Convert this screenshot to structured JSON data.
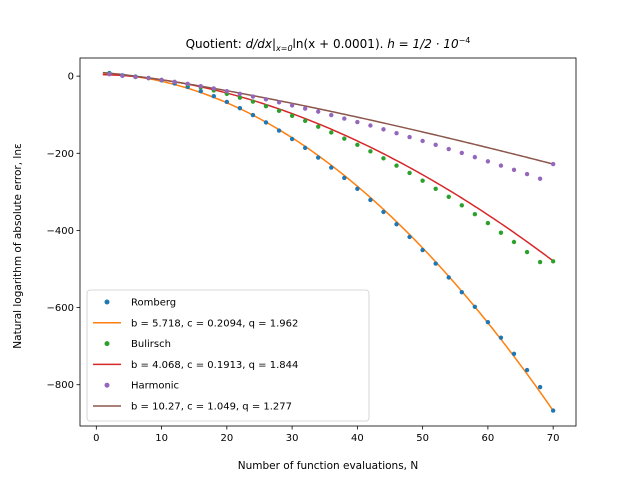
{
  "chart_data": {
    "type": "scatter",
    "title": "Quotient: d/dx|x=0 ln(x + 0.0001). h = 1/2 · 10⁻⁴",
    "title_parts": {
      "prefix": "Quotient: ",
      "deriv": "d/dx",
      "bar": "|",
      "sub": "x=0",
      "func": "ln(x + 0.0001). ",
      "h": "h = 1/2 · 10",
      "exp": "−4"
    },
    "xlabel": "Number of function evaluations, N",
    "ylabel": "Natural logarithm of absolute error, lnε",
    "xlim": [
      -2.5,
      73.5
    ],
    "ylim": [
      -907,
      47
    ],
    "xticks": [
      0,
      10,
      20,
      30,
      40,
      50,
      60,
      70
    ],
    "yticks": [
      0,
      -200,
      -400,
      -600,
      -800
    ],
    "ytick_labels": [
      "0",
      "−200",
      "−400",
      "−600",
      "−800"
    ],
    "grid": false,
    "legend_position": "lower-left",
    "x": [
      2,
      4,
      6,
      8,
      10,
      12,
      14,
      16,
      18,
      20,
      22,
      24,
      26,
      28,
      30,
      32,
      34,
      36,
      38,
      40,
      42,
      44,
      46,
      48,
      50,
      52,
      54,
      56,
      58,
      60,
      62,
      64,
      66,
      68,
      70
    ],
    "series": [
      {
        "name": "Romberg",
        "kind": "points",
        "color": "#1f77b4",
        "values": [
          8,
          2,
          -1,
          -5,
          -11,
          -19,
          -28,
          -39,
          -52,
          -67,
          -83,
          -101,
          -120,
          -141,
          -163,
          -186,
          -211,
          -237,
          -264,
          -292,
          -321,
          -352,
          -384,
          -417,
          -451,
          -486,
          -522,
          -560,
          -598,
          -638,
          -678,
          -720,
          -762,
          -806,
          -867
        ]
      },
      {
        "name": "b = 5.718, c = 0.2094, q = 1.962",
        "kind": "fit",
        "color": "#ff7f0e",
        "fit": {
          "b": 5.718,
          "c": 0.2094,
          "q": 1.962
        }
      },
      {
        "name": "Bulirsch",
        "kind": "points",
        "color": "#2ca02c",
        "values": [
          6,
          1,
          -2,
          -5,
          -10,
          -15,
          -22,
          -29,
          -37,
          -46,
          -56,
          -66,
          -78,
          -90,
          -103,
          -116,
          -131,
          -146,
          -162,
          -178,
          -195,
          -213,
          -232,
          -251,
          -271,
          -292,
          -313,
          -335,
          -358,
          -381,
          -406,
          -430,
          -456,
          -482,
          -480
        ]
      },
      {
        "name": "b = 4.068, c = 0.1913, q = 1.844",
        "kind": "fit",
        "color": "#d62728",
        "fit": {
          "b": 4.068,
          "c": 0.1913,
          "q": 1.844
        }
      },
      {
        "name": "Harmonic",
        "kind": "points",
        "color": "#9467bd",
        "values": [
          5,
          1,
          -2,
          -5,
          -10,
          -15,
          -20,
          -26,
          -32,
          -39,
          -46,
          -53,
          -60,
          -68,
          -76,
          -84,
          -92,
          -101,
          -110,
          -119,
          -128,
          -138,
          -148,
          -158,
          -168,
          -178,
          -189,
          -199,
          -210,
          -221,
          -232,
          -243,
          -254,
          -266,
          -228
        ]
      },
      {
        "name": "b = 10.27, c = 1.049, q = 1.277",
        "kind": "fit",
        "color": "#8c564b",
        "fit": {
          "b": 10.27,
          "c": 1.049,
          "q": 1.277
        }
      }
    ]
  }
}
